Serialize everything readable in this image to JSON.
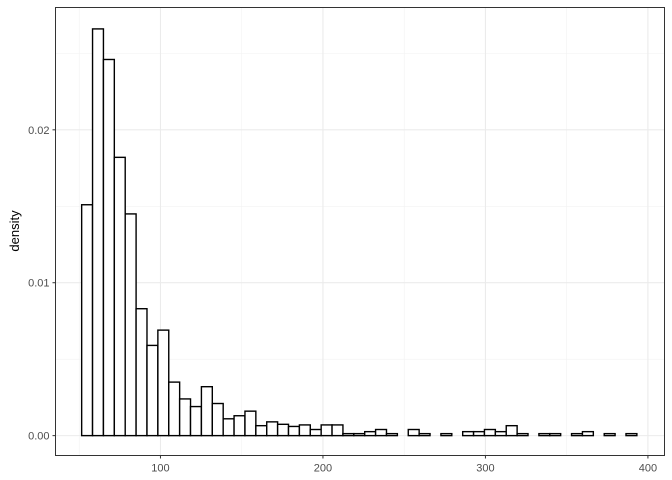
{
  "chart_data": {
    "type": "histogram",
    "title": "",
    "xlabel": "",
    "ylabel": "density",
    "xlim": [
      35.4,
      410.2
    ],
    "ylim": [
      -0.0013,
      0.028
    ],
    "x_ticks": [
      100,
      200,
      300,
      400
    ],
    "x_tick_labels": [
      "100",
      "200",
      "300",
      "400"
    ],
    "y_ticks": [
      0,
      0.01,
      0.02
    ],
    "y_tick_labels": [
      "0.00",
      "0.01",
      "0.02"
    ],
    "grid": true,
    "theme": "bw",
    "bar_fill": "#ffffff",
    "bar_outline": "#000000",
    "bin_start": 51.5,
    "bin_width": 6.7,
    "values": [
      0.0151,
      0.0266,
      0.0246,
      0.0182,
      0.0145,
      0.0083,
      0.0059,
      0.0069,
      0.0035,
      0.0024,
      0.0019,
      0.0032,
      0.0021,
      0.0011,
      0.0013,
      0.0016,
      0.00065,
      0.0009,
      0.00074,
      0.0006,
      0.0007,
      0.0004,
      0.0007,
      0.0007,
      0.00013,
      0.00013,
      0.00026,
      0.0004,
      0.00013,
      0,
      0.0004,
      0.00013,
      0,
      0.00013,
      0,
      0.00026,
      0.00026,
      0.0004,
      0.00026,
      0.00065,
      0.00013,
      0,
      0.00013,
      0.00013,
      0,
      0.00013,
      0.00026,
      0,
      0.00013,
      0,
      0.00013
    ]
  }
}
